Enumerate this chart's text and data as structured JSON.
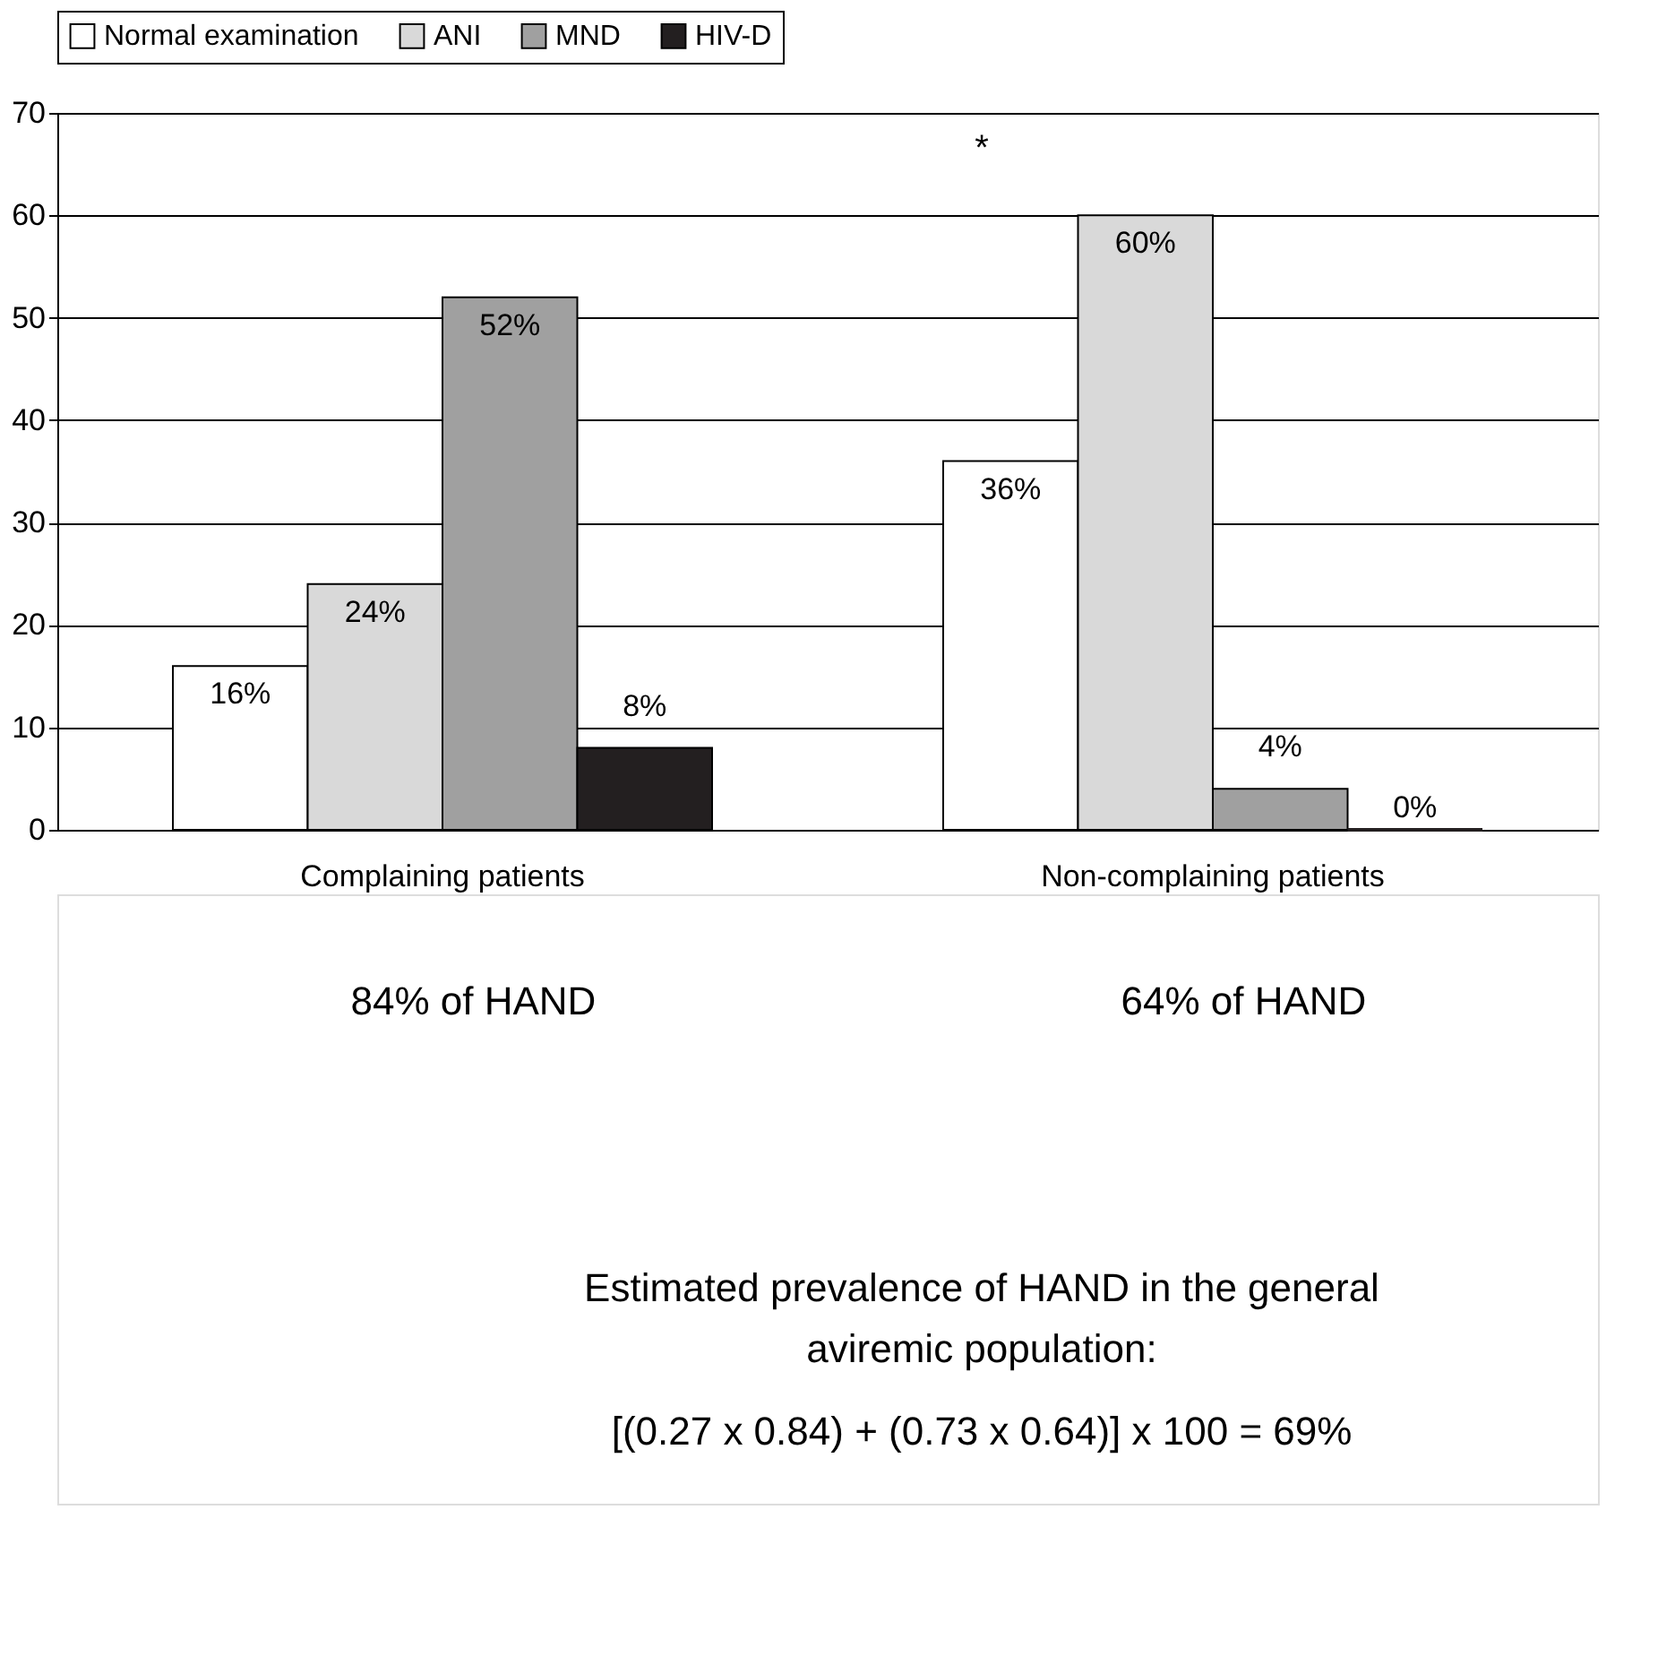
{
  "chart_data": {
    "type": "bar",
    "categories": [
      "Complaining patients",
      "Non-complaining patients"
    ],
    "series": [
      {
        "name": "Normal examination",
        "color": "#ffffff",
        "values": [
          16,
          36
        ],
        "value_labels": [
          "16%",
          "36%"
        ]
      },
      {
        "name": "ANI",
        "color": "#d9d9d9",
        "values": [
          24,
          60
        ],
        "value_labels": [
          "24%",
          "60%"
        ]
      },
      {
        "name": "MND",
        "color": "#a0a0a0",
        "values": [
          52,
          4
        ],
        "value_labels": [
          "52%",
          "4%"
        ]
      },
      {
        "name": "HIV-D",
        "color": "#231f20",
        "values": [
          8,
          0
        ],
        "value_labels": [
          "8%",
          "0%"
        ]
      }
    ],
    "ylim": [
      0,
      70
    ],
    "yticks": [
      0,
      10,
      20,
      30,
      40,
      50,
      60,
      70
    ],
    "grid": "y",
    "legend": "top",
    "annotations": [
      "*",
      "84% of HAND",
      "64% of HAND",
      "Estimated prevalence of HAND in the general\naviremic population:",
      "[(0.27 x 0.84) + (0.73 x 0.64)] x 100 = 69%"
    ]
  }
}
